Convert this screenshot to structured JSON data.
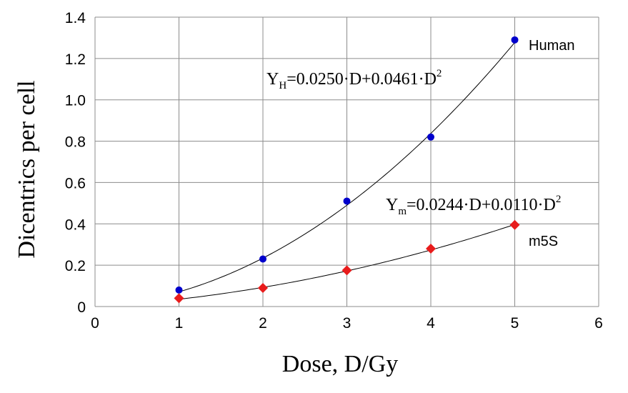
{
  "chart_data": {
    "type": "scatter",
    "xlabel": "Dose, D/Gy",
    "ylabel": "Dicentrics per cell",
    "xlim": [
      0,
      6
    ],
    "ylim": [
      0,
      1.4
    ],
    "x_ticks": [
      "0",
      "1",
      "2",
      "3",
      "4",
      "5",
      "6"
    ],
    "y_ticks": [
      "0",
      "0.2",
      "0.4",
      "0.6",
      "0.8",
      "1.0",
      "1.2",
      "1.4"
    ],
    "grid": true,
    "series": [
      {
        "name": "Human",
        "marker": "circle",
        "color": "#0000cc",
        "x": [
          1,
          2,
          3,
          4,
          5
        ],
        "y": [
          0.08,
          0.23,
          0.51,
          0.82,
          1.29
        ],
        "fit": {
          "linear": 0.025,
          "quadratic": 0.0461
        },
        "equation": {
          "symbol": "Y",
          "sub": "H",
          "body": "=0.0250·D+0.0461·D",
          "sup": "2"
        }
      },
      {
        "name": "m5S",
        "marker": "diamond",
        "color": "#e81c1c",
        "x": [
          1,
          2,
          3,
          4,
          5
        ],
        "y": [
          0.04,
          0.09,
          0.175,
          0.28,
          0.395
        ],
        "fit": {
          "linear": 0.0244,
          "quadratic": 0.011
        },
        "equation": {
          "symbol": "Y",
          "sub": "m",
          "body": "=0.0244·D+0.0110·D",
          "sup": "2"
        }
      }
    ]
  }
}
